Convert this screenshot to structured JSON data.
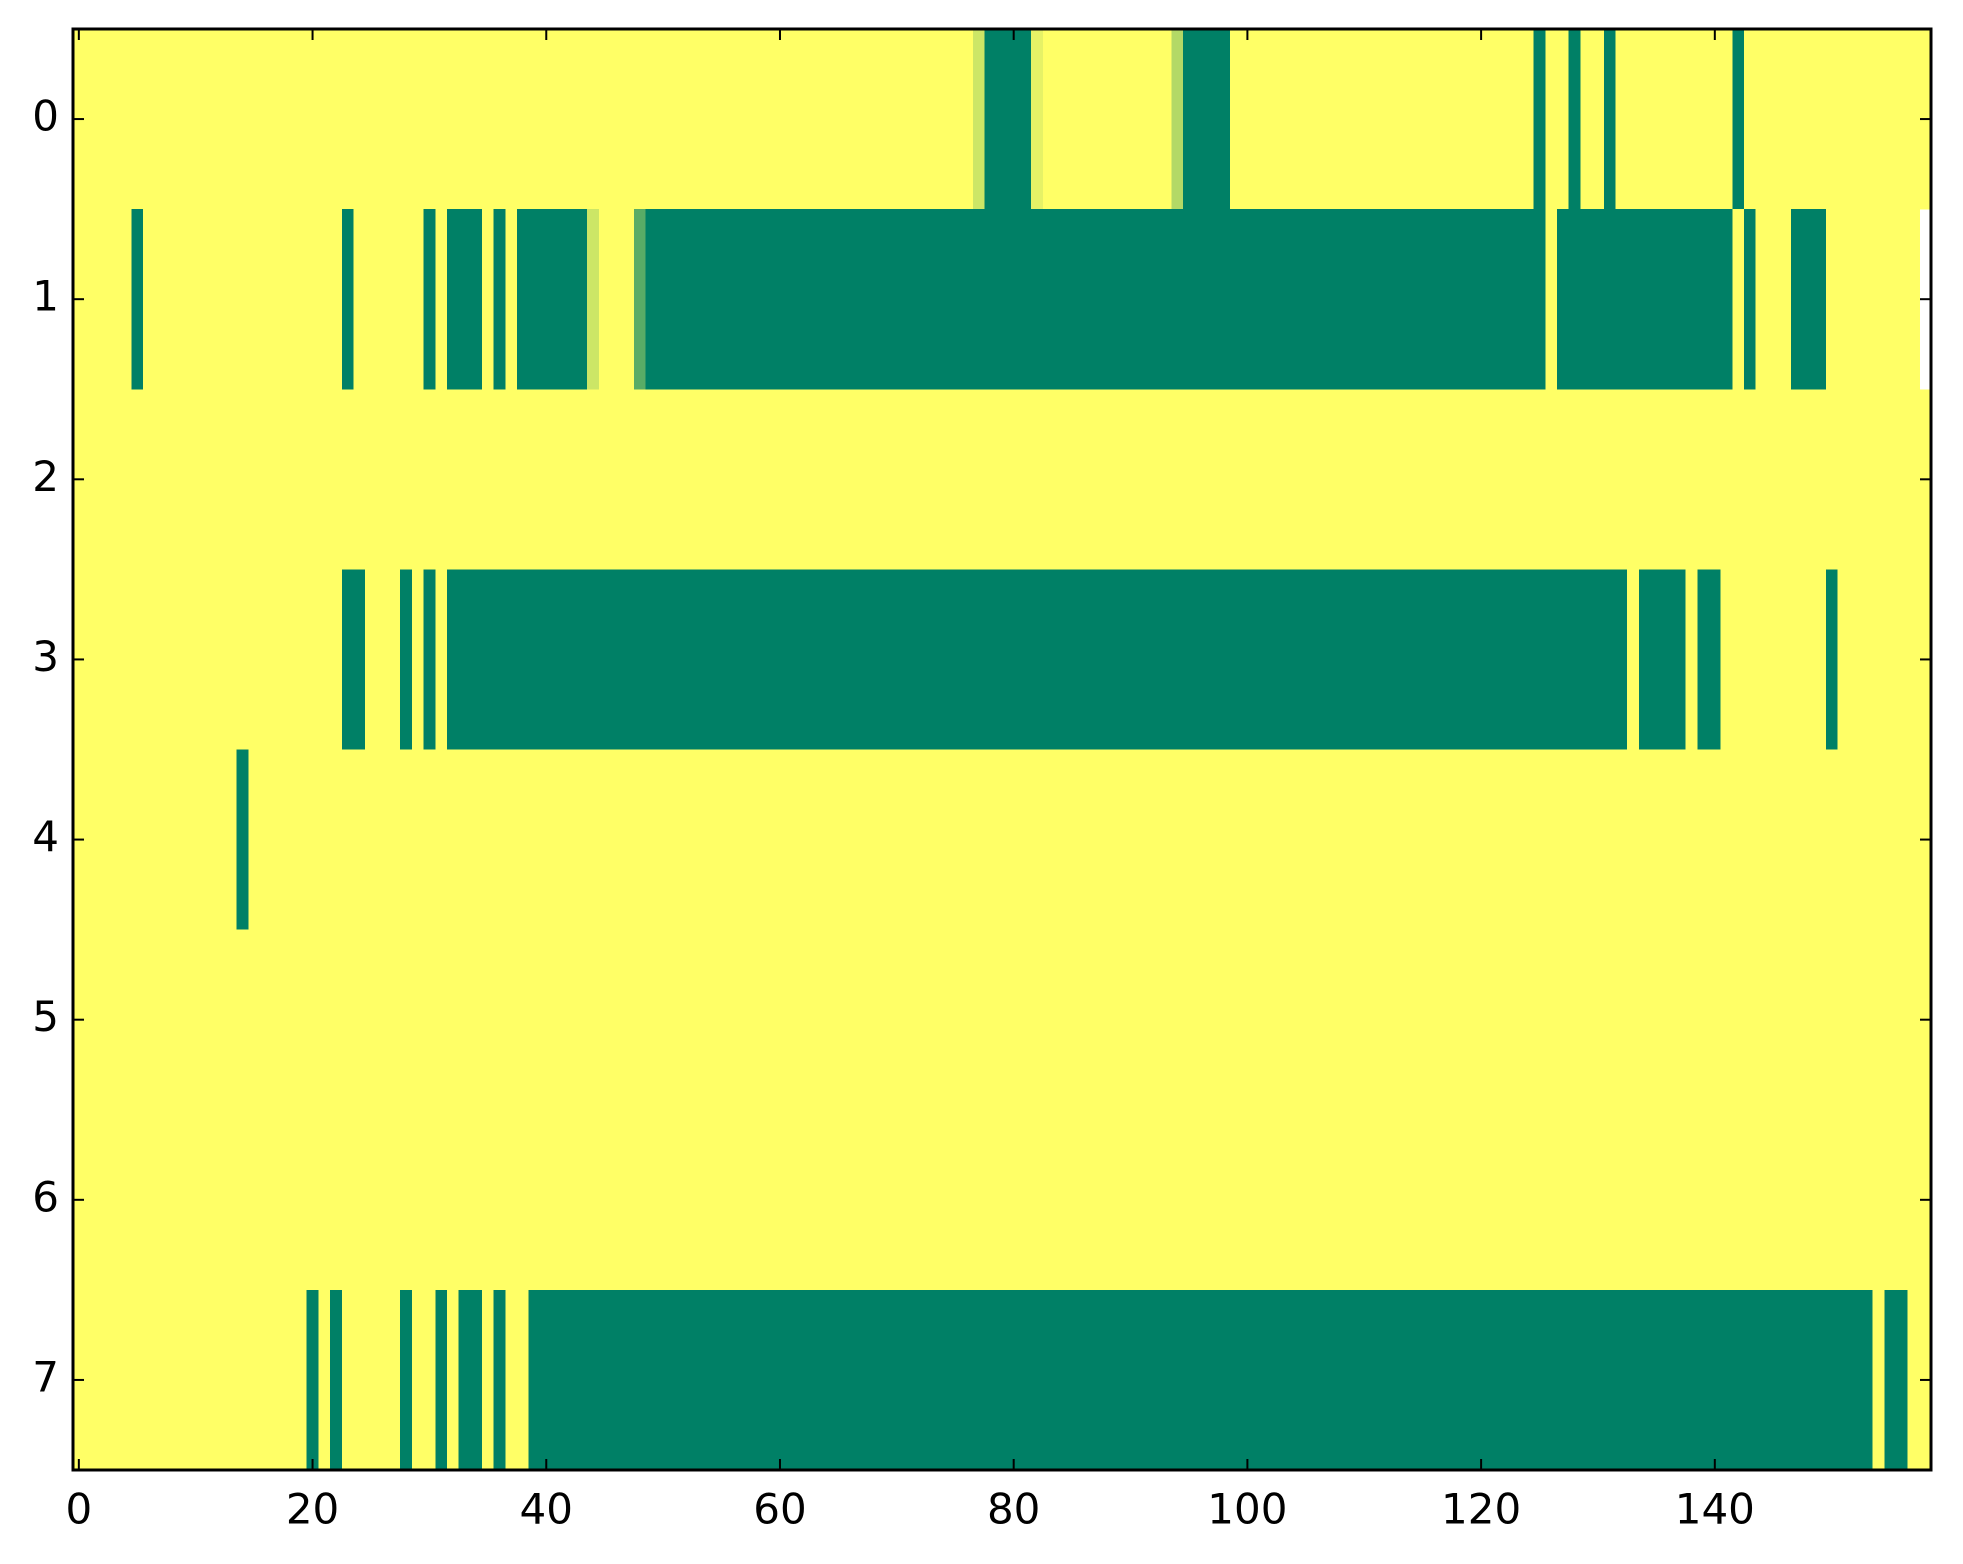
{
  "chart_data": {
    "type": "heatmap",
    "colormap": "summer",
    "xlim": [
      -0.5,
      158.5
    ],
    "ylim": [
      7.5,
      -0.5
    ],
    "xticks": [
      0,
      20,
      40,
      60,
      80,
      100,
      120,
      140
    ],
    "yticks": [
      0,
      1,
      2,
      3,
      4,
      5,
      6,
      7
    ],
    "values": [
      [
        1,
        1,
        1,
        1,
        1,
        1,
        1,
        1,
        1,
        1,
        1,
        1,
        1,
        1,
        1,
        1,
        1,
        1,
        1,
        1,
        1,
        1,
        1,
        1,
        1,
        1,
        1,
        1,
        1,
        1,
        1,
        1,
        1,
        1,
        1,
        1,
        1,
        1,
        1,
        1,
        1,
        1,
        1,
        1,
        1,
        1,
        1,
        1,
        1,
        1,
        1,
        1,
        1,
        1,
        1,
        1,
        1,
        1,
        1,
        1,
        1,
        1,
        1,
        1,
        1,
        1,
        1,
        1,
        1,
        1,
        1,
        1,
        1,
        1,
        1,
        1,
        1,
        0.8,
        0,
        0,
        0,
        0,
        0.9,
        1,
        1,
        1,
        1,
        1,
        1,
        1,
        1,
        1,
        1,
        1,
        0.7,
        0,
        0,
        0,
        0,
        1,
        1,
        1,
        1,
        1,
        1,
        1,
        1,
        1,
        1,
        1,
        1,
        1,
        1,
        1,
        1,
        1,
        1,
        1,
        1,
        1,
        1,
        1,
        1,
        1,
        1,
        0,
        1,
        1,
        0,
        1,
        1,
        0,
        1,
        1,
        1,
        1,
        1,
        1,
        1,
        1,
        1,
        1,
        0,
        1,
        1,
        1,
        1,
        1,
        1,
        1,
        1,
        1,
        1,
        1,
        1,
        1,
        1,
        1,
        1
      ],
      [
        1,
        1,
        1,
        1,
        1,
        0,
        1,
        1,
        1,
        1,
        1,
        1,
        1,
        1,
        1,
        1,
        1,
        1,
        1,
        1,
        1,
        1,
        1,
        0,
        1,
        1,
        1,
        1,
        1,
        1,
        0,
        1,
        0,
        0,
        0,
        1,
        0,
        1,
        0,
        0,
        0,
        0,
        0,
        0,
        0.8,
        1,
        1,
        1,
        0.35,
        0,
        0,
        0,
        0,
        0,
        0,
        0,
        0,
        0,
        0,
        0,
        0,
        0,
        0,
        0,
        0,
        0,
        0,
        0,
        0,
        0,
        0,
        0,
        0,
        0,
        0,
        0,
        0,
        0,
        0,
        0,
        0,
        0,
        0,
        0,
        0,
        0,
        0,
        0,
        0,
        0,
        0,
        0,
        0,
        0,
        0,
        0,
        0,
        0,
        0,
        0,
        0,
        0,
        0,
        0,
        0,
        0,
        0,
        0,
        0,
        0,
        0,
        0,
        0,
        0,
        0,
        0,
        0,
        0,
        0,
        0,
        0,
        0,
        0,
        0,
        0,
        0,
        1,
        0,
        0,
        0,
        0,
        0,
        0,
        0,
        0,
        0,
        0,
        0,
        0,
        0,
        0,
        0,
        1,
        0,
        1,
        1,
        1,
        0,
        0,
        0,
        1,
        1,
        1,
        1,
        1,
        1,
        1,
        1
      ],
      [
        1,
        1,
        1,
        1,
        1,
        1,
        1,
        1,
        1,
        1,
        1,
        1,
        1,
        1,
        1,
        1,
        1,
        1,
        1,
        1,
        1,
        1,
        1,
        1,
        1,
        1,
        1,
        1,
        1,
        1,
        1,
        1,
        1,
        1,
        1,
        1,
        1,
        1,
        1,
        1,
        1,
        1,
        1,
        1,
        1,
        1,
        1,
        1,
        1,
        1,
        1,
        1,
        1,
        1,
        1,
        1,
        1,
        1,
        1,
        1,
        1,
        1,
        1,
        1,
        1,
        1,
        1,
        1,
        1,
        1,
        1,
        1,
        1,
        1,
        1,
        1,
        1,
        1,
        1,
        1,
        1,
        1,
        1,
        1,
        1,
        1,
        1,
        1,
        1,
        1,
        1,
        1,
        1,
        1,
        1,
        1,
        1,
        1,
        1,
        1,
        1,
        1,
        1,
        1,
        1,
        1,
        1,
        1,
        1,
        1,
        1,
        1,
        1,
        1,
        1,
        1,
        1,
        1,
        1,
        1,
        1,
        1,
        1,
        1,
        1,
        1,
        1,
        1,
        1,
        1,
        1,
        1,
        1,
        1,
        1,
        1,
        1,
        1,
        1,
        1,
        1,
        1,
        1,
        1,
        1,
        1,
        1,
        1,
        1,
        1,
        1,
        1,
        1,
        1,
        1,
        1,
        1,
        1,
        1
      ],
      [
        1,
        1,
        1,
        1,
        1,
        1,
        1,
        1,
        1,
        1,
        1,
        1,
        1,
        1,
        1,
        1,
        1,
        1,
        1,
        1,
        1,
        1,
        1,
        0,
        0,
        1,
        1,
        1,
        0,
        1,
        0,
        1,
        0,
        0,
        0,
        0,
        0,
        0,
        0,
        0,
        0,
        0,
        0,
        0,
        0,
        0,
        0,
        0,
        0,
        0,
        0,
        0,
        0,
        0,
        0,
        0,
        0,
        0,
        0,
        0,
        0,
        0,
        0,
        0,
        0,
        0,
        0,
        0,
        0,
        0,
        0,
        0,
        0,
        0,
        0,
        0,
        0,
        0,
        0,
        0,
        0,
        0,
        0,
        0,
        0,
        0,
        0,
        0,
        0,
        0,
        0,
        0,
        0,
        0,
        0,
        0,
        0,
        0,
        0,
        0,
        0,
        0,
        0,
        0,
        0,
        0,
        0,
        0,
        0,
        0,
        0,
        0,
        0,
        0,
        0,
        0,
        0,
        0,
        0,
        0,
        0,
        0,
        0,
        0,
        0,
        0,
        0,
        0,
        0,
        0,
        0,
        0,
        0,
        1,
        0,
        0,
        0,
        0,
        1,
        0,
        0,
        1,
        1,
        1,
        1,
        1,
        1,
        1,
        1,
        1,
        0,
        1,
        1,
        1,
        1,
        1,
        1,
        1,
        1
      ],
      [
        1,
        1,
        1,
        1,
        1,
        1,
        1,
        1,
        1,
        1,
        1,
        1,
        1,
        1,
        0,
        1,
        1,
        1,
        1,
        1,
        1,
        1,
        1,
        1,
        1,
        1,
        1,
        1,
        1,
        1,
        1,
        1,
        1,
        1,
        1,
        1,
        1,
        1,
        1,
        1,
        1,
        1,
        1,
        1,
        1,
        1,
        1,
        1,
        1,
        1,
        1,
        1,
        1,
        1,
        1,
        1,
        1,
        1,
        1,
        1,
        1,
        1,
        1,
        1,
        1,
        1,
        1,
        1,
        1,
        1,
        1,
        1,
        1,
        1,
        1,
        1,
        1,
        1,
        1,
        1,
        1,
        1,
        1,
        1,
        1,
        1,
        1,
        1,
        1,
        1,
        1,
        1,
        1,
        1,
        1,
        1,
        1,
        1,
        1,
        1,
        1,
        1,
        1,
        1,
        1,
        1,
        1,
        1,
        1,
        1,
        1,
        1,
        1,
        1,
        1,
        1,
        1,
        1,
        1,
        1,
        1,
        1,
        1,
        1,
        1,
        1,
        1,
        1,
        1,
        1,
        1,
        1,
        1,
        1,
        1,
        1,
        1,
        1,
        1,
        1,
        1,
        1,
        1,
        1,
        1,
        1,
        1,
        1,
        1,
        1,
        1,
        1,
        1,
        1,
        1,
        1,
        1,
        1,
        1
      ],
      [
        1,
        1,
        1,
        1,
        1,
        1,
        1,
        1,
        1,
        1,
        1,
        1,
        1,
        1,
        1,
        1,
        1,
        1,
        1,
        1,
        1,
        1,
        1,
        1,
        1,
        1,
        1,
        1,
        1,
        1,
        1,
        1,
        1,
        1,
        1,
        1,
        1,
        1,
        1,
        1,
        1,
        1,
        1,
        1,
        1,
        1,
        1,
        1,
        1,
        1,
        1,
        1,
        1,
        1,
        1,
        1,
        1,
        1,
        1,
        1,
        1,
        1,
        1,
        1,
        1,
        1,
        1,
        1,
        1,
        1,
        1,
        1,
        1,
        1,
        1,
        1,
        1,
        1,
        1,
        1,
        1,
        1,
        1,
        1,
        1,
        1,
        1,
        1,
        1,
        1,
        1,
        1,
        1,
        1,
        1,
        1,
        1,
        1,
        1,
        1,
        1,
        1,
        1,
        1,
        1,
        1,
        1,
        1,
        1,
        1,
        1,
        1,
        1,
        1,
        1,
        1,
        1,
        1,
        1,
        1,
        1,
        1,
        1,
        1,
        1,
        1,
        1,
        1,
        1,
        1,
        1,
        1,
        1,
        1,
        1,
        1,
        1,
        1,
        1,
        1,
        1,
        1,
        1,
        1,
        1,
        1,
        1,
        1,
        1,
        1,
        1,
        1,
        1,
        1,
        1,
        1,
        1,
        1,
        1
      ],
      [
        1,
        1,
        1,
        1,
        1,
        1,
        1,
        1,
        1,
        1,
        1,
        1,
        1,
        1,
        1,
        1,
        1,
        1,
        1,
        1,
        1,
        1,
        1,
        1,
        1,
        1,
        1,
        1,
        1,
        1,
        1,
        1,
        1,
        1,
        1,
        1,
        1,
        1,
        1,
        1,
        1,
        1,
        1,
        1,
        1,
        1,
        1,
        1,
        1,
        1,
        1,
        1,
        1,
        1,
        1,
        1,
        1,
        1,
        1,
        1,
        1,
        1,
        1,
        1,
        1,
        1,
        1,
        1,
        1,
        1,
        1,
        1,
        1,
        1,
        1,
        1,
        1,
        1,
        1,
        1,
        1,
        1,
        1,
        1,
        1,
        1,
        1,
        1,
        1,
        1,
        1,
        1,
        1,
        1,
        1,
        1,
        1,
        1,
        1,
        1,
        1,
        1,
        1,
        1,
        1,
        1,
        1,
        1,
        1,
        1,
        1,
        1,
        1,
        1,
        1,
        1,
        1,
        1,
        1,
        1,
        1,
        1,
        1,
        1,
        1,
        1,
        1,
        1,
        1,
        1,
        1,
        1,
        1,
        1,
        1,
        1,
        1,
        1,
        1,
        1,
        1,
        1,
        1,
        1,
        1,
        1,
        1,
        1,
        1,
        1,
        1,
        1,
        1,
        1,
        1,
        1,
        1,
        1,
        1
      ],
      [
        1,
        1,
        1,
        1,
        1,
        1,
        1,
        1,
        1,
        1,
        1,
        1,
        1,
        1,
        1,
        1,
        1,
        1,
        1,
        1,
        0,
        1,
        0,
        1,
        1,
        1,
        1,
        1,
        0,
        1,
        1,
        0,
        1,
        0,
        0,
        1,
        0,
        1,
        1,
        0,
        0,
        0,
        0,
        0,
        0,
        0,
        0,
        0,
        0,
        0,
        0,
        0,
        0,
        0,
        0,
        0,
        0,
        0,
        0,
        0,
        0,
        0,
        0,
        0,
        0,
        0,
        0,
        0,
        0,
        0,
        0,
        0,
        0,
        0,
        0,
        0,
        0,
        0,
        0,
        0,
        0,
        0,
        0,
        0,
        0,
        0,
        0,
        0,
        0,
        0,
        0,
        0,
        0,
        0,
        0,
        0,
        0,
        0,
        0,
        0,
        0,
        0,
        0,
        0,
        0,
        0,
        0,
        0,
        0,
        0,
        0,
        0,
        0,
        0,
        0,
        0,
        0,
        0,
        0,
        0,
        0,
        0,
        0,
        0,
        0,
        0,
        0,
        0,
        0,
        0,
        0,
        0,
        0,
        0,
        0,
        0,
        0,
        0,
        0,
        0,
        0,
        0,
        0,
        0,
        0,
        0,
        0,
        0,
        0,
        0,
        0,
        0,
        0,
        0,
        1,
        0,
        0,
        1,
        1
      ]
    ]
  }
}
